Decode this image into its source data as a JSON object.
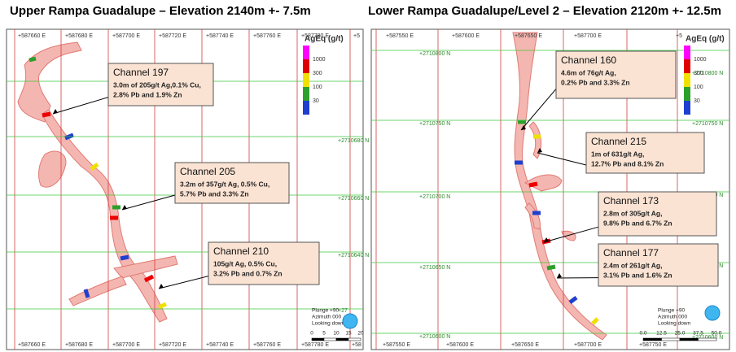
{
  "panels": [
    {
      "title": "Upper Rampa Guadalupe – Elevation 2140m +- 7.5m",
      "top_labels": [
        "+587660 E",
        "+587680 E",
        "+587700 E",
        "+587720 E",
        "+587740 E",
        "+587760 E",
        "+587780 E",
        "+5"
      ],
      "bottom_labels": [
        "+587660 E",
        "+587680 E",
        "+587700 E",
        "+587720 E",
        "+587740 E",
        "+587760 E",
        "+587780 E",
        "+58"
      ],
      "left_labels": [],
      "right_labels": [
        "+2710680 N",
        "+2710660 N",
        "+2710640 N",
        "+27"
      ],
      "legend": {
        "title": "AgEq (g/t)",
        "labels": [
          "1000",
          "300",
          "100",
          "30"
        ]
      },
      "callouts": [
        {
          "title": "Channel 197",
          "lines": [
            "3.0m of 205g/t Ag,0.1% Cu,",
            "2.8% Pb and 1.9% Zn"
          ]
        },
        {
          "title": "Channel 205",
          "lines": [
            "3.2m of 357g/t Ag, 0.5% Cu,",
            "5.7% Pb and 3.3% Zn"
          ]
        },
        {
          "title": "Channel 210",
          "lines": [
            "105g/t Ag, 0.5% Cu,",
            "3.2% Pb and 0.7% Zn"
          ]
        }
      ],
      "view": [
        "Plunge +90",
        "Azimuth 000",
        "Looking down"
      ],
      "scale": [
        "0",
        "5",
        "10",
        "15",
        "20"
      ]
    },
    {
      "title": "Lower Rampa Guadalupe/Level 2 – Elevation 2120m +- 12.5m",
      "top_labels": [
        "+587550 E",
        "+587600 E",
        "+587650 E",
        "+587700 E",
        "+5"
      ],
      "bottom_labels": [
        "+587550 E",
        "+587600 E",
        "+587650 E",
        "+587700 E",
        "+587750 E"
      ],
      "left_labels": [
        "+2710800 N",
        "+2710750 N",
        "+2710700 N",
        "+2710650 N",
        "+2710600 N"
      ],
      "right_labels": [
        "+2710800 N",
        "+2710750 N",
        "+2710700 N",
        "+2710650 N",
        "+2710600 N"
      ],
      "legend": {
        "title": "AgEq (g/t)",
        "labels": [
          "1000",
          "300",
          "100",
          "30"
        ]
      },
      "callouts": [
        {
          "title": "Channel 160",
          "lines": [
            "4.6m of 76g/t Ag,",
            "0.2% Pb and 3.3% Zn"
          ]
        },
        {
          "title": "Channel 215",
          "lines": [
            "1m of 631g/t Ag,",
            "12.7% Pb and 8.1% Zn"
          ]
        },
        {
          "title": "Channel 173",
          "lines": [
            "2.8m of 305g/t Ag,",
            "9.8% Pb and 6.7% Zn"
          ]
        },
        {
          "title": "Channel 177",
          "lines": [
            "2.4m of 261g/t Ag,",
            "3.1% Pb and 1.6% Zn"
          ]
        }
      ],
      "view": [
        "Plunge +90",
        "Azimuth 000",
        "Looking down"
      ],
      "scale": [
        "0.0",
        "12.5",
        "25.0",
        "37.5",
        "50.0"
      ]
    }
  ]
}
